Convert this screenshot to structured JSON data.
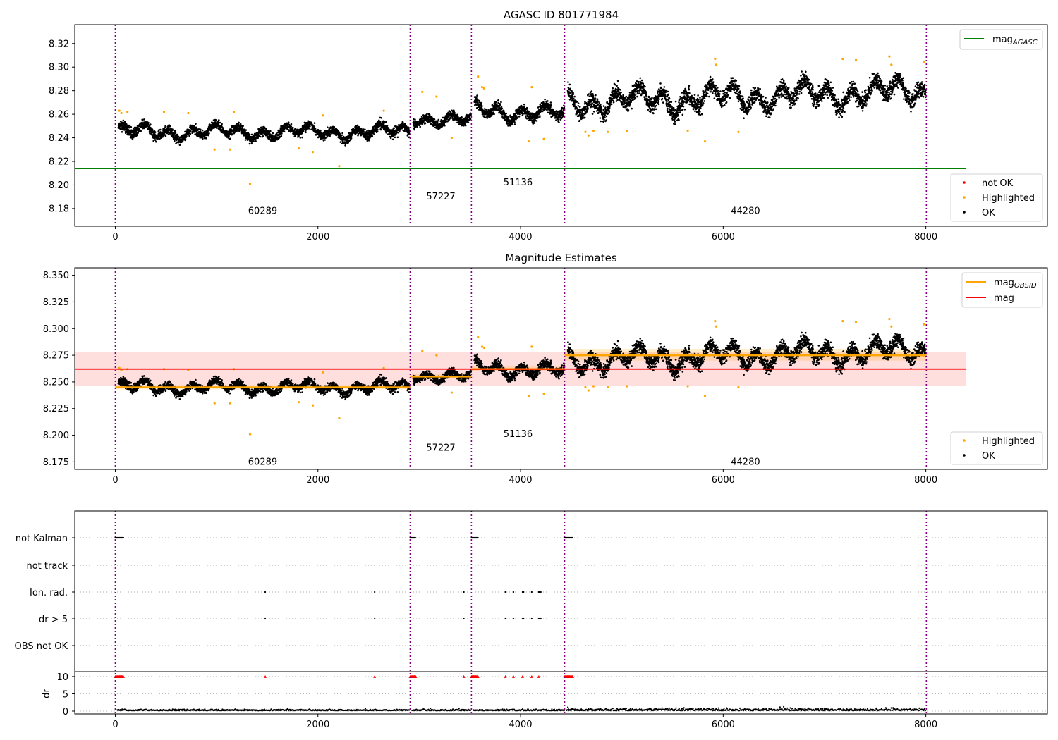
{
  "chart_data": [
    {
      "type": "scatter",
      "title": "AGASC ID 801771984",
      "xlim": [
        -400,
        9200
      ],
      "ylim": [
        8.165,
        8.336
      ],
      "xticks": [
        0,
        2000,
        4000,
        6000,
        8000
      ],
      "yticks": [
        8.18,
        8.2,
        8.22,
        8.24,
        8.26,
        8.28,
        8.3,
        8.32
      ],
      "obs_boundaries": [
        0,
        2910,
        3515,
        4435,
        8005
      ],
      "obsids": [
        {
          "label": "60289",
          "x": 1455,
          "y": 8.178
        },
        {
          "label": "57227",
          "x": 3213,
          "y": 8.19
        },
        {
          "label": "51136",
          "x": 3975,
          "y": 8.202
        },
        {
          "label": "44280",
          "x": 6220,
          "y": 8.178
        }
      ],
      "segments": [
        {
          "obsid": "60289",
          "x": [
            0,
            2910
          ],
          "mean": 8.245,
          "std": 0.005,
          "trend": 0.0
        },
        {
          "obsid": "57227",
          "x": [
            2910,
            3515
          ],
          "mean": 8.256,
          "std": 0.005,
          "trend": -0.003
        },
        {
          "obsid": "51136",
          "x": [
            3515,
            4435
          ],
          "mean": 8.262,
          "std": 0.006,
          "trend": -0.006
        },
        {
          "obsid": "44280",
          "x": [
            4435,
            8005
          ],
          "mean": 8.275,
          "std": 0.009,
          "trend": 0.01
        }
      ],
      "highlighted_points": [
        [
          40,
          8.263
        ],
        [
          60,
          8.261
        ],
        [
          120,
          8.262
        ],
        [
          480,
          8.262
        ],
        [
          720,
          8.261
        ],
        [
          980,
          8.23
        ],
        [
          1130,
          8.23
        ],
        [
          1170,
          8.262
        ],
        [
          1330,
          8.201
        ],
        [
          1810,
          8.231
        ],
        [
          1950,
          8.228
        ],
        [
          2050,
          8.259
        ],
        [
          2210,
          8.216
        ],
        [
          2650,
          8.263
        ],
        [
          3030,
          8.279
        ],
        [
          3170,
          8.275
        ],
        [
          3320,
          8.24
        ],
        [
          3580,
          8.292
        ],
        [
          3620,
          8.283
        ],
        [
          3640,
          8.282
        ],
        [
          4110,
          8.283
        ],
        [
          4080,
          8.237
        ],
        [
          4230,
          8.239
        ],
        [
          4640,
          8.245
        ],
        [
          4670,
          8.242
        ],
        [
          4720,
          8.246
        ],
        [
          4860,
          8.245
        ],
        [
          5050,
          8.246
        ],
        [
          5650,
          8.246
        ],
        [
          5820,
          8.237
        ],
        [
          5920,
          8.307
        ],
        [
          5930,
          8.302
        ],
        [
          6150,
          8.245
        ],
        [
          7180,
          8.307
        ],
        [
          7310,
          8.306
        ],
        [
          7640,
          8.309
        ],
        [
          7660,
          8.302
        ],
        [
          7980,
          8.304
        ]
      ],
      "hline": {
        "label": "mag_AGASC",
        "value": 8.214,
        "x": [
          -400,
          8400
        ],
        "color": "#008000"
      },
      "legend_lines": [
        {
          "label": "mag",
          "sub": "AGASC",
          "color": "#008000"
        }
      ],
      "legend_points": [
        {
          "label": "not OK",
          "color": "#ff0000"
        },
        {
          "label": "Highlighted",
          "color": "#ffa500"
        },
        {
          "label": "OK",
          "color": "#000000"
        }
      ]
    },
    {
      "type": "scatter",
      "title": "Magnitude Estimates",
      "xlim": [
        -400,
        9200
      ],
      "ylim": [
        8.168,
        8.357
      ],
      "xticks": [
        0,
        2000,
        4000,
        6000,
        8000
      ],
      "yticks": [
        8.175,
        8.2,
        8.225,
        8.25,
        8.275,
        8.3,
        8.325,
        8.35
      ],
      "obsids": [
        {
          "label": "60289",
          "x": 1455,
          "y": 8.175
        },
        {
          "label": "57227",
          "x": 3213,
          "y": 8.188
        },
        {
          "label": "51136",
          "x": 3975,
          "y": 8.201
        },
        {
          "label": "44280",
          "x": 6220,
          "y": 8.175
        }
      ],
      "mag": {
        "value": 8.262,
        "band": [
          8.246,
          8.278
        ],
        "x": [
          -400,
          8400
        ],
        "color": "#ff0000"
      },
      "mag_obsid": [
        {
          "x": [
            0,
            2910
          ],
          "value": 8.245,
          "band": [
            8.243,
            8.247
          ]
        },
        {
          "x": [
            2910,
            3515
          ],
          "value": 8.255,
          "band": [
            8.253,
            8.258
          ]
        },
        {
          "x": [
            3515,
            4435
          ],
          "value": 8.262,
          "band": [
            8.26,
            8.265
          ]
        },
        {
          "x": [
            4435,
            8005
          ],
          "value": 8.275,
          "band": [
            8.27,
            8.281
          ]
        }
      ],
      "legend_lines": [
        {
          "label": "mag",
          "sub": "OBSID",
          "color": "#ffa500"
        },
        {
          "label": "mag",
          "sub": "",
          "color": "#ff0000"
        }
      ],
      "legend_points": [
        {
          "label": "Highlighted",
          "color": "#ffa500"
        },
        {
          "label": "OK",
          "color": "#000000"
        }
      ]
    },
    {
      "type": "scatter",
      "xlim": [
        -400,
        9200
      ],
      "flag_rows": [
        "not Kalman",
        "not track",
        "Ion. rad.",
        "dr > 5",
        "OBS not OK"
      ],
      "not_kalman_x": [
        [
          0,
          80
        ],
        [
          2910,
          2965
        ],
        [
          3515,
          3580
        ],
        [
          4435,
          4515
        ]
      ],
      "ion_rad_x": [
        1480,
        2560,
        3440,
        3850,
        3930,
        4020,
        4030,
        4110,
        4180,
        4190,
        4200
      ],
      "dr_gt5_x": [
        1480,
        2560,
        3440,
        3850,
        3930,
        4020,
        4030,
        4110,
        4180,
        4190,
        4200
      ],
      "dr_outliers": [
        [
          1480,
          10
        ],
        [
          2560,
          10
        ],
        [
          3440,
          10
        ],
        [
          3850,
          10
        ],
        [
          3930,
          10
        ],
        [
          4020,
          10
        ],
        [
          4110,
          10
        ],
        [
          4180,
          10
        ]
      ],
      "dr_ylabel": "dr",
      "dr_yticks": [
        0,
        5,
        10
      ],
      "xticks": [
        0,
        2000,
        4000,
        6000,
        8000
      ]
    }
  ]
}
